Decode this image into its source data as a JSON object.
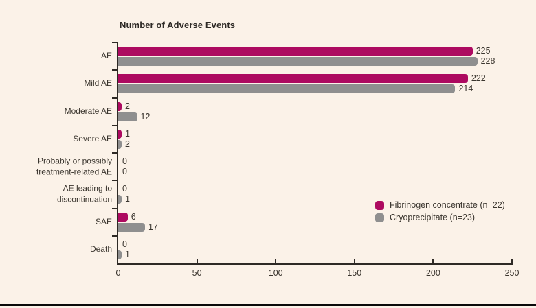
{
  "figure": {
    "background": "#fbf2e8",
    "axis_color": "#2e2a25",
    "text_color": "#3a352e",
    "bottom_rule_color": "#0a0a0a"
  },
  "chart_data": {
    "type": "bar",
    "orientation": "horizontal",
    "title": "Number of Adverse Events",
    "categories": [
      "AE",
      "Mild AE",
      "Moderate AE",
      "Severe AE",
      "Probably or possibly\ntreatment-related AE",
      "AE leading to\ndiscontinuation",
      "SAE",
      "Death"
    ],
    "series": [
      {
        "name": "Fibrinogen concentrate (n=22)",
        "color": "#ad0a60",
        "values": [
          225,
          222,
          2,
          1,
          0,
          0,
          6,
          0
        ]
      },
      {
        "name": "Cryoprecipitate (n=23)",
        "color": "#8f8f8f",
        "values": [
          228,
          214,
          12,
          2,
          0,
          1,
          17,
          1
        ]
      }
    ],
    "xlabel": "",
    "ylabel": "",
    "xlim": [
      0,
      250
    ],
    "x_ticks": [
      0,
      50,
      100,
      150,
      200,
      250
    ],
    "grid": false,
    "value_labels": true,
    "legend_position": "right-middle"
  }
}
